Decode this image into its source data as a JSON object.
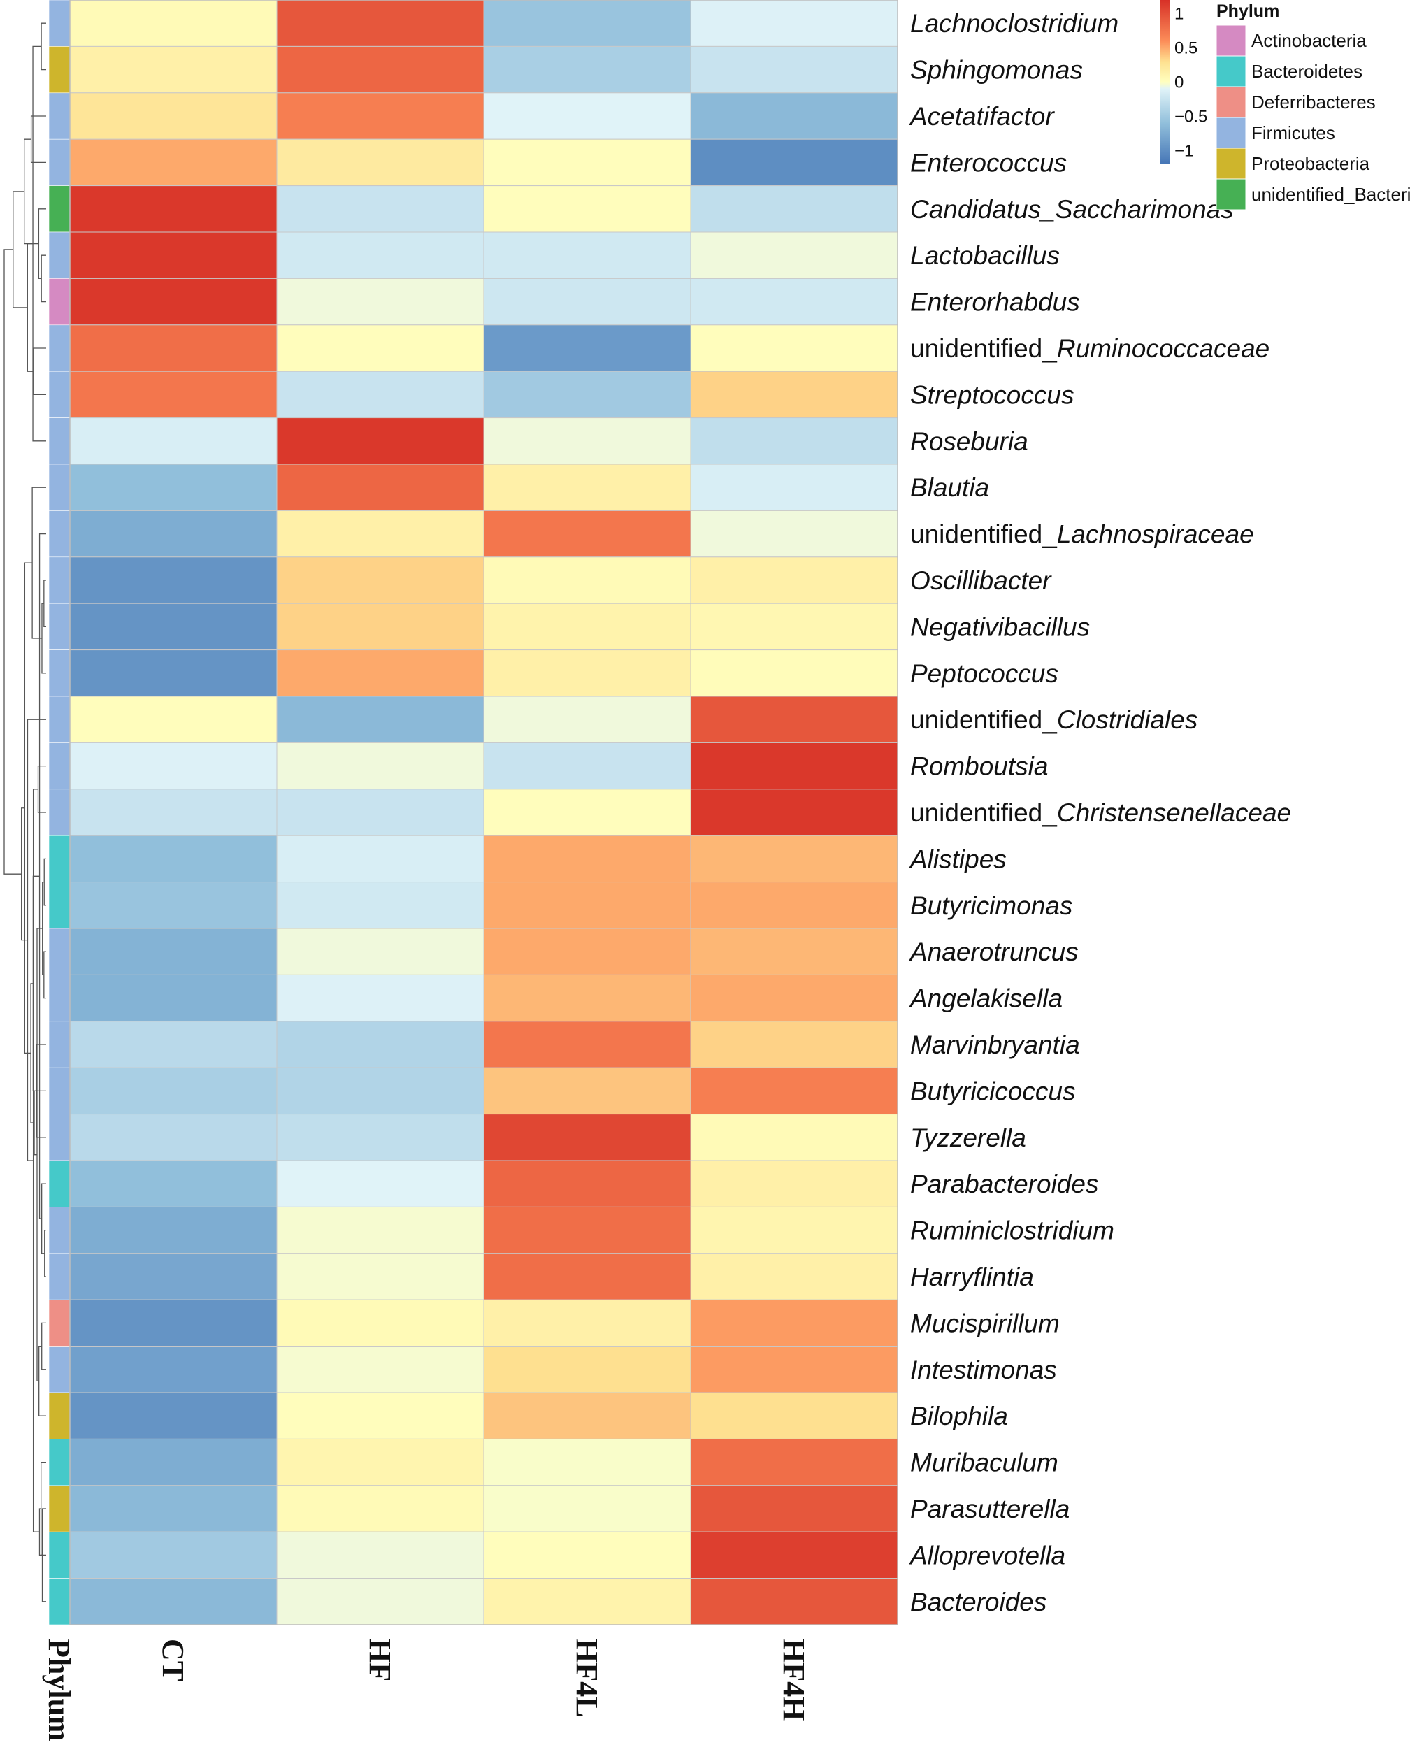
{
  "chart_data": {
    "type": "heatmap",
    "title": "",
    "columns": [
      "CT",
      "HF",
      "HF4L",
      "HF4H"
    ],
    "annotation_label": "Phylum",
    "value_range": [
      -1.2,
      1.2
    ],
    "scale_ticks": [
      "1",
      "0.5",
      "0",
      "−0.5",
      "−1"
    ],
    "scale_tick_values": [
      1,
      0.5,
      0,
      -0.5,
      -1
    ],
    "phylum_legend": {
      "title": "Phylum",
      "items": [
        {
          "name": "Actinobacteria",
          "color": "#d58ac2"
        },
        {
          "name": "Bacteroidetes",
          "color": "#45c9c9"
        },
        {
          "name": "Deferribacteres",
          "color": "#ee8f86"
        },
        {
          "name": "Firmicutes",
          "color": "#93b4e0"
        },
        {
          "name": "Proteobacteria",
          "color": "#ceb52c"
        },
        {
          "name": "unidentified_Bacteria",
          "color": "#46b054"
        }
      ]
    },
    "rows": [
      {
        "prefix": "",
        "name": "Lachnoclostridium",
        "phylum": "Firmicutes",
        "values": [
          0.05,
          0.95,
          -0.55,
          -0.12
        ]
      },
      {
        "prefix": "",
        "name": "Sphingomonas",
        "phylum": "Proteobacteria",
        "values": [
          0.15,
          0.85,
          -0.45,
          -0.25
        ]
      },
      {
        "prefix": "",
        "name": "Acetatifactor",
        "phylum": "Firmicutes",
        "values": [
          0.25,
          0.7,
          -0.1,
          -0.65
        ]
      },
      {
        "prefix": "",
        "name": "Enterococcus",
        "phylum": "Firmicutes",
        "values": [
          0.5,
          0.2,
          0.02,
          -1.0
        ]
      },
      {
        "prefix": "",
        "name": "Candidatus_Saccharimonas",
        "phylum": "unidentified_Bacteria",
        "values": [
          1.15,
          -0.25,
          0.02,
          -0.3
        ]
      },
      {
        "prefix": "",
        "name": "Lactobacillus",
        "phylum": "Firmicutes",
        "values": [
          1.15,
          -0.2,
          -0.2,
          -0.05
        ]
      },
      {
        "prefix": "",
        "name": "Enterorhabdus",
        "phylum": "Actinobacteria",
        "values": [
          1.15,
          -0.05,
          -0.22,
          -0.2
        ]
      },
      {
        "prefix": "unidentified_",
        "name": "Ruminococcaceae",
        "phylum": "Firmicutes",
        "values": [
          0.8,
          0.02,
          -0.9,
          0.02
        ]
      },
      {
        "prefix": "",
        "name": "Streptococcus",
        "phylum": "Firmicutes",
        "values": [
          0.75,
          -0.25,
          -0.5,
          0.35
        ]
      },
      {
        "prefix": "",
        "name": "Roseburia",
        "phylum": "Firmicutes",
        "values": [
          -0.15,
          1.15,
          -0.05,
          -0.3
        ]
      },
      {
        "prefix": "",
        "name": "Blautia",
        "phylum": "Firmicutes",
        "values": [
          -0.6,
          0.85,
          0.15,
          -0.15
        ]
      },
      {
        "prefix": "unidentified_",
        "name": "Lachnospiraceae",
        "phylum": "Firmicutes",
        "values": [
          -0.75,
          0.15,
          0.75,
          -0.05
        ]
      },
      {
        "prefix": "",
        "name": "Oscillibacter",
        "phylum": "Firmicutes",
        "values": [
          -0.95,
          0.35,
          0.05,
          0.15
        ]
      },
      {
        "prefix": "",
        "name": "Negativibacillus",
        "phylum": "Firmicutes",
        "values": [
          -0.95,
          0.35,
          0.12,
          0.08
        ]
      },
      {
        "prefix": "",
        "name": "Peptococcus",
        "phylum": "Firmicutes",
        "values": [
          -0.95,
          0.5,
          0.15,
          0.03
        ]
      },
      {
        "prefix": "unidentified_",
        "name": "Clostridiales",
        "phylum": "Firmicutes",
        "values": [
          0.02,
          -0.65,
          -0.05,
          0.95
        ]
      },
      {
        "prefix": "",
        "name": "Romboutsia",
        "phylum": "Firmicutes",
        "values": [
          -0.12,
          -0.05,
          -0.25,
          1.15
        ]
      },
      {
        "prefix": "unidentified_",
        "name": "Christensenellaceae",
        "phylum": "Firmicutes",
        "values": [
          -0.25,
          -0.25,
          0.02,
          1.15
        ]
      },
      {
        "prefix": "",
        "name": "Alistipes",
        "phylum": "Bacteroidetes",
        "values": [
          -0.6,
          -0.15,
          0.5,
          0.45
        ]
      },
      {
        "prefix": "",
        "name": "Butyricimonas",
        "phylum": "Bacteroidetes",
        "values": [
          -0.55,
          -0.2,
          0.5,
          0.5
        ]
      },
      {
        "prefix": "",
        "name": "Anaerotruncus",
        "phylum": "Firmicutes",
        "values": [
          -0.7,
          -0.05,
          0.5,
          0.45
        ]
      },
      {
        "prefix": "",
        "name": "Angelakisella",
        "phylum": "Firmicutes",
        "values": [
          -0.7,
          -0.12,
          0.45,
          0.5
        ]
      },
      {
        "prefix": "",
        "name": "Marvinbryantia",
        "phylum": "Firmicutes",
        "values": [
          -0.35,
          -0.4,
          0.75,
          0.35
        ]
      },
      {
        "prefix": "",
        "name": "Butyricicoccus",
        "phylum": "Firmicutes",
        "values": [
          -0.45,
          -0.4,
          0.4,
          0.7
        ]
      },
      {
        "prefix": "",
        "name": "Tyzzerella",
        "phylum": "Firmicutes",
        "values": [
          -0.35,
          -0.3,
          1.05,
          0.05
        ]
      },
      {
        "prefix": "",
        "name": "Parabacteroides",
        "phylum": "Bacteroidetes",
        "values": [
          -0.6,
          -0.1,
          0.85,
          0.15
        ]
      },
      {
        "prefix": "",
        "name": "Ruminiclostridium",
        "phylum": "Firmicutes",
        "values": [
          -0.75,
          -0.03,
          0.8,
          0.1
        ]
      },
      {
        "prefix": "",
        "name": "Harryflintia",
        "phylum": "Firmicutes",
        "values": [
          -0.8,
          -0.03,
          0.8,
          0.15
        ]
      },
      {
        "prefix": "",
        "name": "Mucispirillum",
        "phylum": "Deferribacteres",
        "values": [
          -0.95,
          0.05,
          0.15,
          0.55
        ]
      },
      {
        "prefix": "",
        "name": "Intestimonas",
        "phylum": "Firmicutes",
        "values": [
          -0.85,
          -0.03,
          0.3,
          0.55
        ]
      },
      {
        "prefix": "",
        "name": "Bilophila",
        "phylum": "Proteobacteria",
        "values": [
          -0.95,
          0.02,
          0.4,
          0.3
        ]
      },
      {
        "prefix": "",
        "name": "Muribaculum",
        "phylum": "Bacteroidetes",
        "values": [
          -0.75,
          0.1,
          -0.02,
          0.8
        ]
      },
      {
        "prefix": "",
        "name": "Parasutterella",
        "phylum": "Proteobacteria",
        "values": [
          -0.65,
          0.05,
          -0.02,
          0.95
        ]
      },
      {
        "prefix": "",
        "name": "Alloprevotella",
        "phylum": "Bacteroidetes",
        "values": [
          -0.5,
          -0.05,
          0.02,
          1.1
        ]
      },
      {
        "prefix": "",
        "name": "Bacteroides",
        "phylum": "Bacteroidetes",
        "values": [
          -0.65,
          -0.05,
          0.12,
          0.95
        ]
      }
    ]
  }
}
